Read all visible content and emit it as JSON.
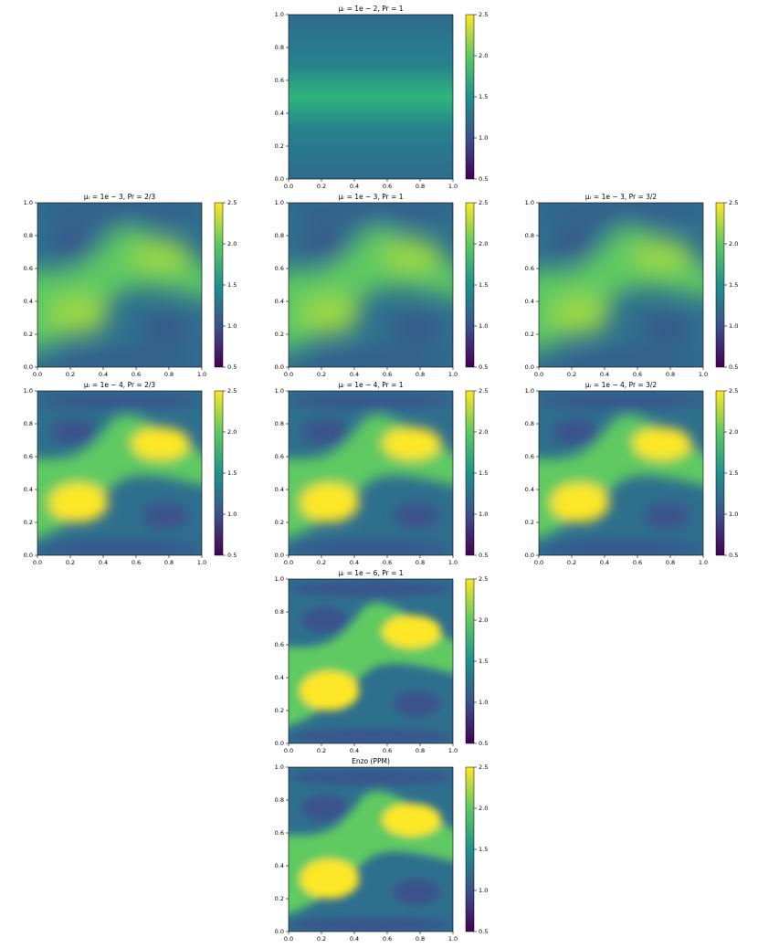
{
  "chart_data": [
    {
      "type": "heatmap",
      "title": "μᵣ = 1e − 2, Pr = 1",
      "xlim": [
        0,
        1
      ],
      "ylim": [
        0,
        1
      ],
      "xticks": [
        {
          "value": 0,
          "label": "0.0"
        },
        0.2,
        0.4,
        0.6,
        0.8,
        {
          "value": 1,
          "label": "1.0"
        }
      ],
      "yticks": [
        {
          "value": 0,
          "label": "0.0"
        },
        0.2,
        0.4,
        0.6,
        0.8,
        {
          "value": 1,
          "label": "1.0"
        }
      ],
      "clim": [
        0.5,
        2.5
      ],
      "cticks": [
        0.5,
        {
          "value": 1,
          "label": "1.0"
        },
        1.5,
        {
          "value": 2,
          "label": "2.0"
        },
        2.5
      ],
      "colormap": "viridis"
    },
    {
      "type": "heatmap",
      "title": "μᵣ = 1e − 3, Pr = 2/3",
      "xlim": [
        0,
        1
      ],
      "ylim": [
        0,
        1
      ],
      "xticks": [
        {
          "value": 0,
          "label": "0.0"
        },
        0.2,
        0.4,
        0.6,
        0.8,
        {
          "value": 1,
          "label": "1.0"
        }
      ],
      "yticks": [
        {
          "value": 0,
          "label": "0.0"
        },
        0.2,
        0.4,
        0.6,
        0.8,
        {
          "value": 1,
          "label": "1.0"
        }
      ],
      "clim": [
        0.5,
        2.5
      ],
      "cticks": [
        0.5,
        {
          "value": 1,
          "label": "1.0"
        },
        1.5,
        {
          "value": 2,
          "label": "2.0"
        },
        2.5
      ],
      "colormap": "viridis"
    },
    {
      "type": "heatmap",
      "title": "μᵣ = 1e − 3, Pr = 1",
      "xlim": [
        0,
        1
      ],
      "ylim": [
        0,
        1
      ],
      "xticks": [
        {
          "value": 0,
          "label": "0.0"
        },
        0.2,
        0.4,
        0.6,
        0.8,
        {
          "value": 1,
          "label": "1.0"
        }
      ],
      "yticks": [
        {
          "value": 0,
          "label": "0.0"
        },
        0.2,
        0.4,
        0.6,
        0.8,
        {
          "value": 1,
          "label": "1.0"
        }
      ],
      "clim": [
        0.5,
        2.5
      ],
      "cticks": [
        0.5,
        {
          "value": 1,
          "label": "1.0"
        },
        1.5,
        {
          "value": 2,
          "label": "2.0"
        },
        2.5
      ],
      "colormap": "viridis"
    },
    {
      "type": "heatmap",
      "title": "μᵣ = 1e − 3, Pr = 3/2",
      "xlim": [
        0,
        1
      ],
      "ylim": [
        0,
        1
      ],
      "xticks": [
        {
          "value": 0,
          "label": "0.0"
        },
        0.2,
        0.4,
        0.6,
        0.8,
        {
          "value": 1,
          "label": "1.0"
        }
      ],
      "yticks": [
        {
          "value": 0,
          "label": "0.0"
        },
        0.2,
        0.4,
        0.6,
        0.8,
        {
          "value": 1,
          "label": "1.0"
        }
      ],
      "clim": [
        0.5,
        2.5
      ],
      "cticks": [
        0.5,
        {
          "value": 1,
          "label": "1.0"
        },
        1.5,
        {
          "value": 2,
          "label": "2.0"
        },
        2.5
      ],
      "colormap": "viridis"
    },
    {
      "type": "heatmap",
      "title": "μᵣ = 1e − 4, Pr = 2/3",
      "xlim": [
        0,
        1
      ],
      "ylim": [
        0,
        1
      ],
      "xticks": [
        {
          "value": 0,
          "label": "0.0"
        },
        0.2,
        0.4,
        0.6,
        0.8,
        {
          "value": 1,
          "label": "1.0"
        }
      ],
      "yticks": [
        {
          "value": 0,
          "label": "0.0"
        },
        0.2,
        0.4,
        0.6,
        0.8,
        {
          "value": 1,
          "label": "1.0"
        }
      ],
      "clim": [
        0.5,
        2.5
      ],
      "cticks": [
        0.5,
        {
          "value": 1,
          "label": "1.0"
        },
        1.5,
        {
          "value": 2,
          "label": "2.0"
        },
        2.5
      ],
      "colormap": "viridis"
    },
    {
      "type": "heatmap",
      "title": "μᵣ = 1e − 4, Pr = 1",
      "xlim": [
        0,
        1
      ],
      "ylim": [
        0,
        1
      ],
      "xticks": [
        {
          "value": 0,
          "label": "0.0"
        },
        0.2,
        0.4,
        0.6,
        0.8,
        {
          "value": 1,
          "label": "1.0"
        }
      ],
      "yticks": [
        {
          "value": 0,
          "label": "0.0"
        },
        0.2,
        0.4,
        0.6,
        0.8,
        {
          "value": 1,
          "label": "1.0"
        }
      ],
      "clim": [
        0.5,
        2.5
      ],
      "cticks": [
        0.5,
        {
          "value": 1,
          "label": "1.0"
        },
        1.5,
        {
          "value": 2,
          "label": "2.0"
        },
        2.5
      ],
      "colormap": "viridis"
    },
    {
      "type": "heatmap",
      "title": "μᵣ = 1e − 4, Pr = 3/2",
      "xlim": [
        0,
        1
      ],
      "ylim": [
        0,
        1
      ],
      "xticks": [
        {
          "value": 0,
          "label": "0.0"
        },
        0.2,
        0.4,
        0.6,
        0.8,
        {
          "value": 1,
          "label": "1.0"
        }
      ],
      "yticks": [
        {
          "value": 0,
          "label": "0.0"
        },
        0.2,
        0.4,
        0.6,
        0.8,
        {
          "value": 1,
          "label": "1.0"
        }
      ],
      "clim": [
        0.5,
        2.5
      ],
      "cticks": [
        0.5,
        {
          "value": 1,
          "label": "1.0"
        },
        1.5,
        {
          "value": 2,
          "label": "2.0"
        },
        2.5
      ],
      "colormap": "viridis"
    },
    {
      "type": "heatmap",
      "title": "μᵣ = 1e − 6, Pr = 1",
      "xlim": [
        0,
        1
      ],
      "ylim": [
        0,
        1
      ],
      "xticks": [
        {
          "value": 0,
          "label": "0.0"
        },
        0.2,
        0.4,
        0.6,
        0.8,
        {
          "value": 1,
          "label": "1.0"
        }
      ],
      "yticks": [
        {
          "value": 0,
          "label": "0.0"
        },
        0.2,
        0.4,
        0.6,
        0.8,
        {
          "value": 1,
          "label": "1.0"
        }
      ],
      "clim": [
        0.5,
        2.5
      ],
      "cticks": [
        0.5,
        {
          "value": 1,
          "label": "1.0"
        },
        1.5,
        {
          "value": 2,
          "label": "2.0"
        },
        2.5
      ],
      "colormap": "viridis"
    },
    {
      "type": "heatmap",
      "title": "Enzo (PPM)",
      "xlim": [
        0,
        1
      ],
      "ylim": [
        0,
        1
      ],
      "xticks": [
        {
          "value": 0,
          "label": "0.0"
        },
        0.2,
        0.4,
        0.6,
        0.8,
        {
          "value": 1,
          "label": "1.0"
        }
      ],
      "yticks": [
        {
          "value": 0,
          "label": "0.0"
        },
        0.2,
        0.4,
        0.6,
        0.8,
        {
          "value": 1,
          "label": "1.0"
        }
      ],
      "clim": [
        0.5,
        2.5
      ],
      "cticks": [
        0.5,
        {
          "value": 1,
          "label": "1.0"
        },
        1.5,
        {
          "value": 2,
          "label": "2.0"
        },
        2.5
      ],
      "colormap": "viridis"
    }
  ]
}
